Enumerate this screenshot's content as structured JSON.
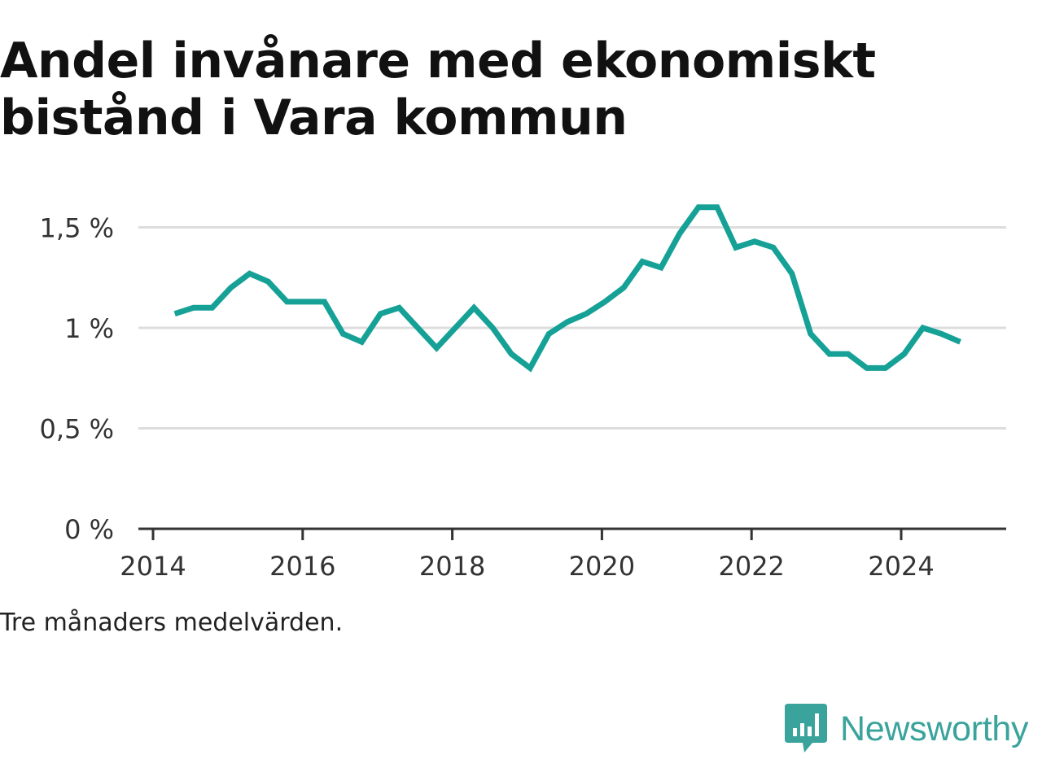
{
  "title": "Andel invånare med ekonomiskt bistånd i Vara kommun",
  "note": "Tre månaders medelvärden.",
  "brand": {
    "name": "Newsworthy",
    "icon": "newsworthy-logo-icon",
    "color": "#3aa39b"
  },
  "colors": {
    "line": "#16a197",
    "grid": "#dddddd",
    "axis": "#333333"
  },
  "chart_data": {
    "type": "line",
    "title": "Andel invånare med ekonomiskt bistånd i Vara kommun",
    "xlabel": "",
    "ylabel": "",
    "xlim": [
      2014.0,
      2025.75
    ],
    "ylim": [
      0,
      1.6
    ],
    "xticks": [
      2014,
      2016,
      2018,
      2020,
      2022,
      2024
    ],
    "xtick_labels": [
      "2014",
      "2016",
      "2018",
      "2020",
      "2022",
      "2024"
    ],
    "yticks": [
      0,
      0.5,
      1,
      1.5
    ],
    "ytick_labels": [
      "0 %",
      "0,5 %",
      "1 %",
      "1,5 %"
    ],
    "grid": true,
    "legend": "none",
    "series": [
      {
        "x": [
          2014.29,
          2014.54,
          2014.79,
          2015.04,
          2015.29,
          2015.54,
          2015.79,
          2016.04,
          2016.29,
          2016.54,
          2016.79,
          2017.04,
          2017.29,
          2017.54,
          2017.79,
          2018.04,
          2018.29,
          2018.54,
          2018.79,
          2019.04,
          2019.29,
          2019.54,
          2019.79,
          2020.04,
          2020.29,
          2020.54,
          2020.79,
          2021.04,
          2021.29,
          2021.54,
          2021.79,
          2022.04,
          2022.29,
          2022.54,
          2022.79,
          2023.04,
          2023.29,
          2023.54,
          2023.79,
          2024.04,
          2024.29,
          2024.54,
          2024.79
        ],
        "values": [
          1.07,
          1.1,
          1.1,
          1.2,
          1.27,
          1.23,
          1.13,
          1.13,
          1.13,
          0.97,
          0.93,
          1.07,
          1.1,
          1.0,
          0.9,
          1.0,
          1.1,
          1.0,
          0.87,
          0.8,
          0.97,
          1.03,
          1.07,
          1.13,
          1.2,
          1.33,
          1.3,
          1.47,
          1.6,
          1.6,
          1.4,
          1.43,
          1.4,
          1.27,
          0.97,
          0.87,
          0.87,
          0.8,
          0.8,
          0.87,
          1.0,
          0.97,
          0.93
        ]
      }
    ]
  }
}
